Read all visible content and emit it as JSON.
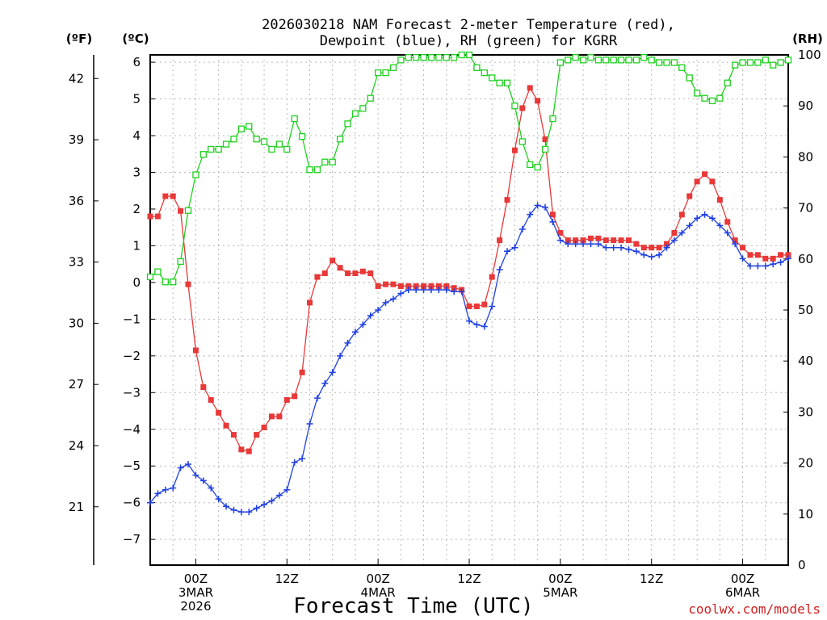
{
  "chart_data": {
    "type": "line",
    "title": [
      "2026030218 NAM Forecast 2-meter Temperature (red),",
      "Dewpoint (blue), RH (green) for KGRR"
    ],
    "xlabel": "Forecast Time (UTC)",
    "credit": "coolwx.com/models",
    "units": {
      "fahrenheit": "(ºF)",
      "celsius": "(ºC)",
      "rh": "(RH)"
    },
    "x_start_hour": -6,
    "x_step_hours": 1,
    "xlim_hours": [
      -6,
      78
    ],
    "x_ticks": [
      {
        "hour": 0,
        "lines": [
          "00Z",
          "3MAR",
          "2026"
        ]
      },
      {
        "hour": 12,
        "lines": [
          "12Z"
        ]
      },
      {
        "hour": 24,
        "lines": [
          "00Z",
          "4MAR"
        ]
      },
      {
        "hour": 36,
        "lines": [
          "12Z"
        ]
      },
      {
        "hour": 48,
        "lines": [
          "00Z",
          "5MAR"
        ]
      },
      {
        "hour": 60,
        "lines": [
          "12Z"
        ]
      },
      {
        "hour": 72,
        "lines": [
          "00Z",
          "6MAR"
        ]
      }
    ],
    "ylim_c": [
      -7.7,
      6.2
    ],
    "yticks_c": [
      -7,
      -6,
      -5,
      -4,
      -3,
      -2,
      -1,
      0,
      1,
      2,
      3,
      4,
      5,
      6
    ],
    "yticks_f": [
      21,
      24,
      27,
      30,
      33,
      36,
      39,
      42
    ],
    "ylim_rh": [
      0,
      100
    ],
    "yticks_rh": [
      0,
      10,
      20,
      30,
      40,
      50,
      60,
      70,
      80,
      90,
      100
    ],
    "series": [
      {
        "name": "Temperature",
        "color": "#e83838",
        "marker": "filled-square",
        "axis": "celsius",
        "values": [
          1.8,
          1.8,
          2.35,
          2.35,
          1.95,
          -0.05,
          -1.85,
          -2.85,
          -3.2,
          -3.55,
          -3.9,
          -4.15,
          -4.55,
          -4.6,
          -4.15,
          -3.95,
          -3.65,
          -3.65,
          -3.2,
          -3.1,
          -2.45,
          -0.55,
          0.15,
          0.25,
          0.6,
          0.4,
          0.25,
          0.25,
          0.3,
          0.25,
          -0.1,
          -0.05,
          -0.05,
          -0.1,
          -0.1,
          -0.1,
          -0.1,
          -0.1,
          -0.1,
          -0.1,
          -0.15,
          -0.2,
          -0.65,
          -0.65,
          -0.6,
          0.15,
          1.15,
          2.25,
          3.6,
          4.75,
          5.3,
          4.95,
          3.9,
          1.85,
          1.35,
          1.15,
          1.15,
          1.15,
          1.2,
          1.2,
          1.15,
          1.15,
          1.15,
          1.15,
          1.05,
          0.95,
          0.95,
          0.95,
          1.05,
          1.35,
          1.85,
          2.35,
          2.75,
          2.95,
          2.75,
          2.25,
          1.65,
          1.15,
          0.95,
          0.75,
          0.75,
          0.65,
          0.65,
          0.75,
          0.75
        ]
      },
      {
        "name": "Dewpoint",
        "color": "#2040e0",
        "marker": "plus",
        "axis": "celsius",
        "values": [
          -6.0,
          -5.75,
          -5.65,
          -5.6,
          -5.05,
          -4.95,
          -5.25,
          -5.4,
          -5.6,
          -5.9,
          -6.1,
          -6.2,
          -6.25,
          -6.25,
          -6.15,
          -6.05,
          -5.95,
          -5.8,
          -5.65,
          -4.9,
          -4.8,
          -3.85,
          -3.15,
          -2.75,
          -2.45,
          -2.0,
          -1.65,
          -1.35,
          -1.15,
          -0.9,
          -0.75,
          -0.55,
          -0.45,
          -0.3,
          -0.2,
          -0.2,
          -0.2,
          -0.2,
          -0.2,
          -0.2,
          -0.25,
          -0.25,
          -1.05,
          -1.15,
          -1.2,
          -0.65,
          0.35,
          0.85,
          0.95,
          1.45,
          1.85,
          2.1,
          2.05,
          1.65,
          1.15,
          1.05,
          1.05,
          1.05,
          1.05,
          1.05,
          0.95,
          0.95,
          0.95,
          0.9,
          0.85,
          0.75,
          0.7,
          0.75,
          0.95,
          1.15,
          1.35,
          1.55,
          1.75,
          1.85,
          1.75,
          1.55,
          1.35,
          1.05,
          0.65,
          0.45,
          0.45,
          0.45,
          0.5,
          0.55,
          0.65
        ]
      },
      {
        "name": "Relative Humidity",
        "color": "#20d020",
        "marker": "open-square",
        "axis": "rh",
        "values": [
          56.5,
          57.5,
          55.5,
          55.5,
          59.5,
          69.5,
          76.5,
          80.5,
          81.5,
          81.5,
          82.5,
          83.5,
          85.5,
          86,
          83.5,
          83,
          81.5,
          82.5,
          81.5,
          87.5,
          84,
          77.5,
          77.5,
          79,
          79,
          83.5,
          86.5,
          88.5,
          89.5,
          91.5,
          96.5,
          96.5,
          97.5,
          99,
          99.5,
          99.5,
          99.5,
          99.5,
          99.5,
          99.5,
          99.5,
          100,
          100,
          97.5,
          96.5,
          95.5,
          94.5,
          94.5,
          90,
          83,
          78.5,
          78,
          81.5,
          87.5,
          98.5,
          99,
          99.5,
          99,
          99.5,
          99,
          99,
          99,
          99,
          99,
          99,
          99.5,
          99,
          98.5,
          98.5,
          98.5,
          97.5,
          95.5,
          92.5,
          91.5,
          91,
          91.5,
          94.5,
          98,
          98.5,
          98.5,
          98.5,
          99,
          98,
          98.5,
          99
        ]
      }
    ]
  }
}
